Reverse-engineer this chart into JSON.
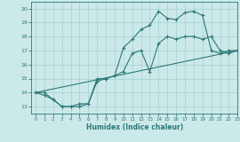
{
  "xlabel": "Humidex (Indice chaleur)",
  "ylabel": "",
  "xlim": [
    -0.5,
    23
  ],
  "ylim": [
    12.5,
    20.5
  ],
  "bg_color": "#cce9e9",
  "grid_color": "#aad4d4",
  "line_color": "#2d7878",
  "line1_x": [
    0,
    1,
    2,
    3,
    4,
    5,
    6,
    7,
    8,
    9,
    10,
    11,
    12,
    13,
    14,
    15,
    16,
    17,
    18,
    19,
    20,
    21,
    22,
    23
  ],
  "line1_y": [
    14.0,
    13.8,
    13.5,
    13.0,
    13.0,
    13.0,
    13.2,
    15.0,
    15.0,
    15.2,
    15.5,
    16.8,
    17.0,
    15.5,
    17.5,
    18.0,
    17.8,
    18.0,
    18.0,
    17.8,
    18.0,
    17.0,
    16.8,
    17.0
  ],
  "line2_x": [
    0,
    1,
    2,
    3,
    4,
    5,
    6,
    7,
    8,
    9,
    10,
    11,
    12,
    13,
    14,
    15,
    16,
    17,
    18,
    19,
    20,
    21,
    22,
    23
  ],
  "line2_y": [
    14.0,
    14.0,
    13.5,
    13.0,
    13.0,
    13.2,
    13.2,
    14.8,
    15.0,
    15.2,
    17.2,
    17.8,
    18.5,
    18.8,
    19.8,
    19.3,
    19.2,
    19.7,
    19.8,
    19.5,
    17.0,
    16.8,
    17.0,
    17.0
  ],
  "line3_x": [
    0,
    23
  ],
  "line3_y": [
    14.0,
    17.0
  ]
}
